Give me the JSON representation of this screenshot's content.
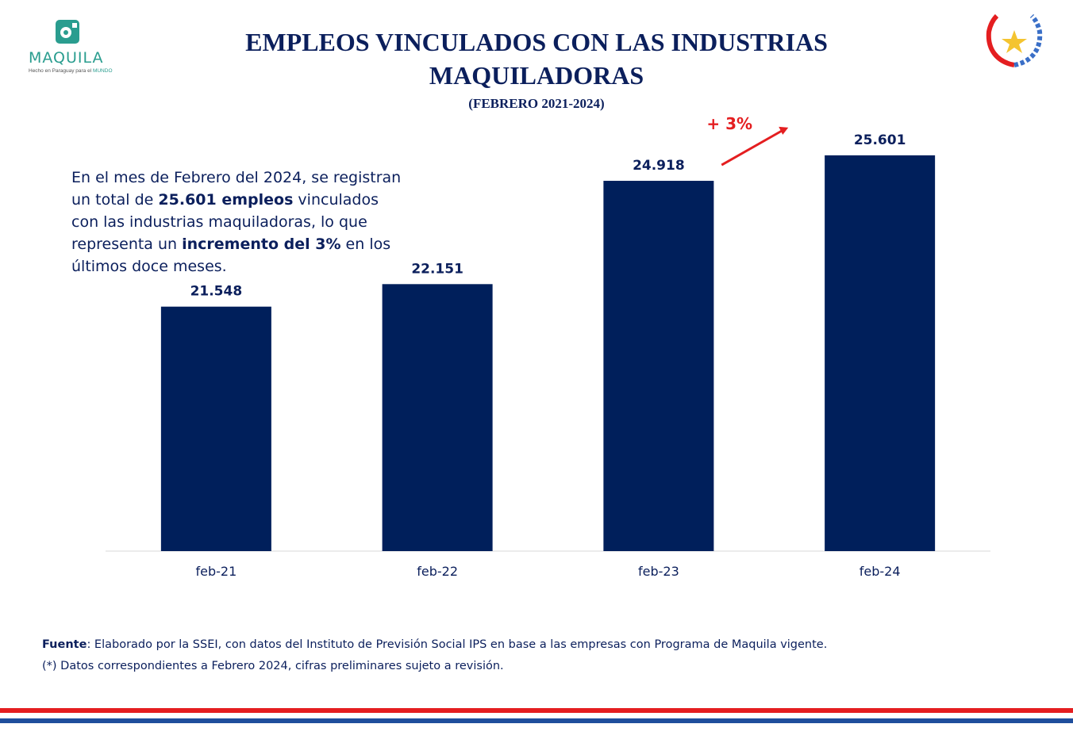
{
  "logo": {
    "name": "MAQUILA",
    "tagline_prefix": "Hecho en Paraguay para el",
    "tagline_highlight": "MUNDO",
    "icon": "gear-icon"
  },
  "seal": {
    "icon": "national-seal-icon"
  },
  "header": {
    "title": "EMPLEOS VINCULADOS CON LAS INDUSTRIAS MAQUILADORAS",
    "subtitle": "(FEBRERO 2021-2024)"
  },
  "description": {
    "part1": "En el mes de Febrero del 2024, se registran un total de ",
    "bold1": "25.601 empleos",
    "part2": " vinculados con las industrias maquiladoras, lo que representa un ",
    "bold2": "incremento del 3%",
    "part3": " en los últimos doce meses."
  },
  "chart_data": {
    "type": "bar",
    "categories": [
      "feb-21",
      "feb-22",
      "feb-23",
      "feb-24"
    ],
    "values": [
      21548,
      22151,
      24918,
      25601
    ],
    "value_labels": [
      "21.548",
      "22.151",
      "24.918",
      "25.601"
    ],
    "annotation": "+ 3%",
    "bar_color": "#001f5b",
    "annotation_color": "#e41e20",
    "ylim": [
      15000,
      27000
    ],
    "grid": false,
    "legend": "none"
  },
  "footer": {
    "source_label": "Fuente",
    "source_text": ": Elaborado por la SSEI, con datos del Instituto de Previsión Social IPS en base a las empresas con Programa de Maquila vigente.",
    "note": "(*) Datos correspondientes a Febrero 2024,  cifras preliminares sujeto a revisión."
  },
  "colors": {
    "title": "#0b1f5c",
    "brand_teal": "#2a9d8f",
    "stripe_red": "#e41e20",
    "stripe_blue": "#1f4e9c"
  }
}
